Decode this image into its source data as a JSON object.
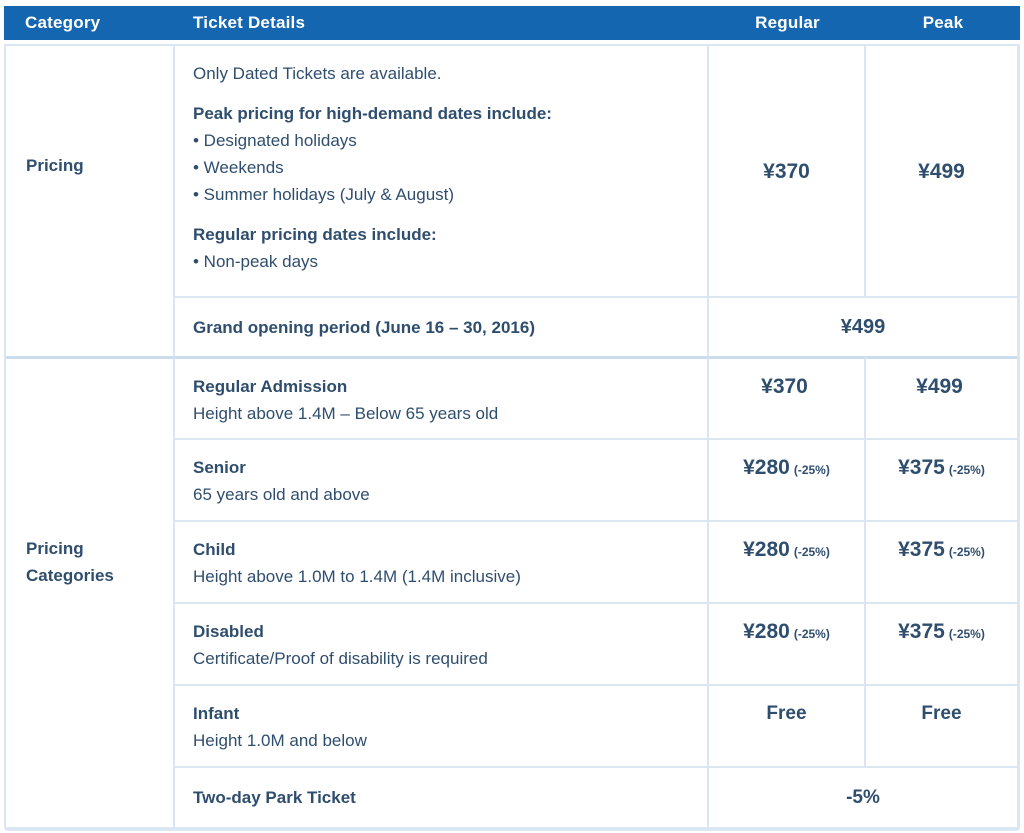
{
  "colors": {
    "header-bg": "#1566b1",
    "text": "#2f4e6e",
    "grid": "#dbe6f3",
    "divider": "#cbdcee"
  },
  "header": {
    "category": "Category",
    "ticket_details": "Ticket Details",
    "regular": "Regular",
    "peak": "Peak"
  },
  "pricing": {
    "category_label": "Pricing",
    "intro": "Only Dated Tickets are available.",
    "peak_heading": "Peak pricing for high-demand dates include:",
    "peak_bullets": [
      "• Designated holidays",
      "• Weekends",
      "• Summer holidays (July & August)"
    ],
    "regular_heading": "Regular pricing dates include:",
    "regular_bullets": [
      "• Non-peak days"
    ],
    "regular_price": "¥370",
    "peak_price": "¥499",
    "grand_opening_label": "Grand opening period (June 16 – 30, 2016)",
    "grand_opening_price": "¥499"
  },
  "categories": {
    "category_label": "Pricing Categories",
    "rows": [
      {
        "title": "Regular Admission",
        "desc": "Height above 1.4M – Below 65 years old",
        "regular": "¥370",
        "regular_note": "",
        "peak": "¥499",
        "peak_note": ""
      },
      {
        "title": "Senior",
        "desc": "65 years old and above",
        "regular": "¥280",
        "regular_note": "(-25%)",
        "peak": "¥375",
        "peak_note": "(-25%)"
      },
      {
        "title": "Child",
        "desc": "Height above 1.0M to 1.4M (1.4M inclusive)",
        "regular": "¥280",
        "regular_note": "(-25%)",
        "peak": "¥375",
        "peak_note": "(-25%)"
      },
      {
        "title": "Disabled",
        "desc": "Certificate/Proof of disability is required",
        "regular": "¥280",
        "regular_note": "(-25%)",
        "peak": "¥375",
        "peak_note": "(-25%)"
      },
      {
        "title": "Infant",
        "desc": "Height 1.0M and below",
        "regular": "Free",
        "regular_note": "",
        "peak": "Free",
        "peak_note": ""
      }
    ],
    "two_day_label": "Two-day Park Ticket",
    "two_day_price": "-5%"
  }
}
